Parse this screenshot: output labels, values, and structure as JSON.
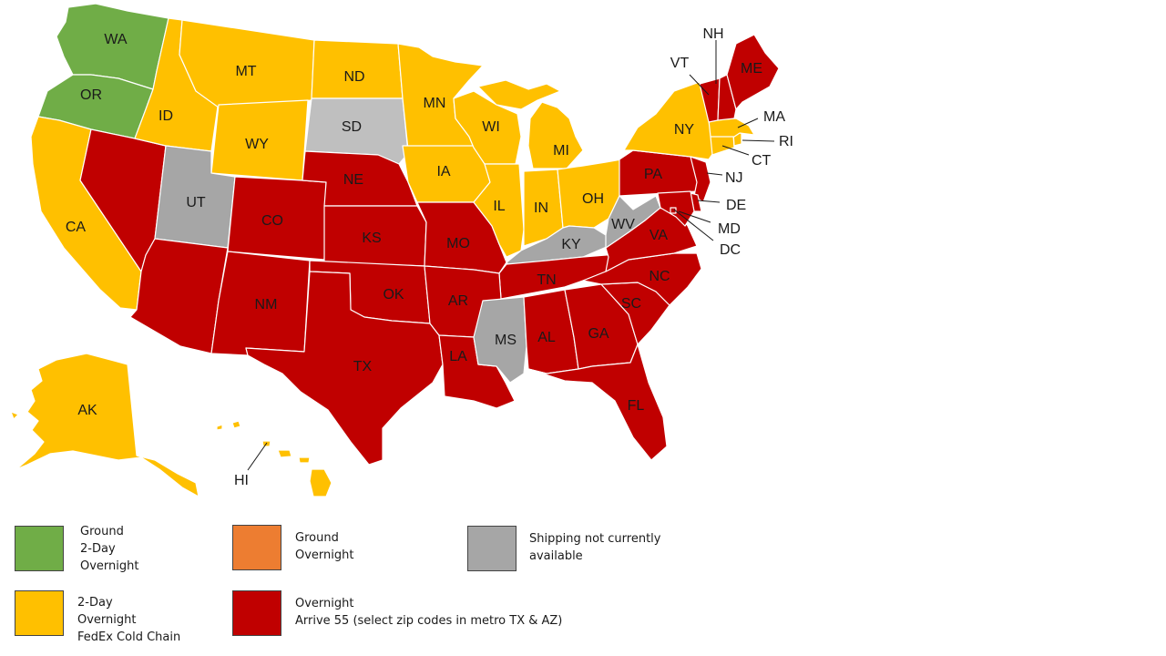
{
  "colors": {
    "green": "#70ad47",
    "orange": "#ed7d31",
    "yellow": "#ffc000",
    "red": "#c00000",
    "gray": "#a6a6a6",
    "lightgray": "#bfbfbf"
  },
  "states": {
    "WA": {
      "label": "WA",
      "category": "green"
    },
    "OR": {
      "label": "OR",
      "category": "green"
    },
    "CA": {
      "label": "CA",
      "category": "yellow"
    },
    "ID": {
      "label": "ID",
      "category": "yellow"
    },
    "MT": {
      "label": "MT",
      "category": "yellow"
    },
    "WY": {
      "label": "WY",
      "category": "yellow"
    },
    "ND": {
      "label": "ND",
      "category": "yellow"
    },
    "MN": {
      "label": "MN",
      "category": "yellow"
    },
    "WI": {
      "label": "WI",
      "category": "yellow"
    },
    "IA": {
      "label": "IA",
      "category": "yellow"
    },
    "IL": {
      "label": "IL",
      "category": "yellow"
    },
    "IN": {
      "label": "IN",
      "category": "yellow"
    },
    "MI": {
      "label": "MI",
      "category": "yellow"
    },
    "OH": {
      "label": "OH",
      "category": "yellow"
    },
    "NY": {
      "label": "NY",
      "category": "yellow"
    },
    "MA": {
      "label": "MA",
      "category": "yellow"
    },
    "RI": {
      "label": "RI",
      "category": "yellow"
    },
    "CT": {
      "label": "CT",
      "category": "yellow"
    },
    "AK": {
      "label": "AK",
      "category": "yellow"
    },
    "HI": {
      "label": "HI",
      "category": "yellow"
    },
    "NV": {
      "label": "",
      "category": "red"
    },
    "AZ": {
      "label": "",
      "category": "red"
    },
    "CO": {
      "label": "CO",
      "category": "red"
    },
    "NM": {
      "label": "NM",
      "category": "red"
    },
    "NE": {
      "label": "NE",
      "category": "red"
    },
    "KS": {
      "label": "KS",
      "category": "red"
    },
    "OK": {
      "label": "OK",
      "category": "red"
    },
    "TX": {
      "label": "TX",
      "category": "red"
    },
    "MO": {
      "label": "MO",
      "category": "red"
    },
    "AR": {
      "label": "AR",
      "category": "red"
    },
    "LA": {
      "label": "LA",
      "category": "red"
    },
    "TN": {
      "label": "TN",
      "category": "red"
    },
    "AL": {
      "label": "AL",
      "category": "red"
    },
    "GA": {
      "label": "GA",
      "category": "red"
    },
    "FL": {
      "label": "FL",
      "category": "red"
    },
    "SC": {
      "label": "SC",
      "category": "red"
    },
    "NC": {
      "label": "NC",
      "category": "red"
    },
    "VA": {
      "label": "VA",
      "category": "red"
    },
    "PA": {
      "label": "PA",
      "category": "red"
    },
    "NJ": {
      "label": "NJ",
      "category": "red"
    },
    "DE": {
      "label": "DE",
      "category": "red"
    },
    "MD": {
      "label": "MD",
      "category": "red"
    },
    "DC": {
      "label": "DC",
      "category": "red"
    },
    "VT": {
      "label": "VT",
      "category": "red"
    },
    "NH": {
      "label": "NH",
      "category": "red"
    },
    "ME": {
      "label": "ME",
      "category": "red"
    },
    "SD": {
      "label": "SD",
      "category": "lightgray"
    },
    "UT": {
      "label": "UT",
      "category": "gray"
    },
    "KY": {
      "label": "KY",
      "category": "gray"
    },
    "WV": {
      "label": "WV",
      "category": "gray"
    },
    "MS": {
      "label": "MS",
      "category": "gray"
    }
  },
  "legend": [
    {
      "category": "green",
      "lines": [
        "Ground",
        "2-Day",
        "Overnight"
      ]
    },
    {
      "category": "orange",
      "lines": [
        "Ground",
        "Overnight"
      ]
    },
    {
      "category": "gray",
      "lines": [
        "Shipping not currently",
        "available"
      ]
    },
    {
      "category": "yellow",
      "lines": [
        "2-Day",
        "Overnight",
        "FedEx Cold Chain"
      ]
    },
    {
      "category": "red",
      "lines": [
        "Overnight",
        "Arrive 55 (select zip codes in metro TX & AZ)"
      ]
    }
  ]
}
